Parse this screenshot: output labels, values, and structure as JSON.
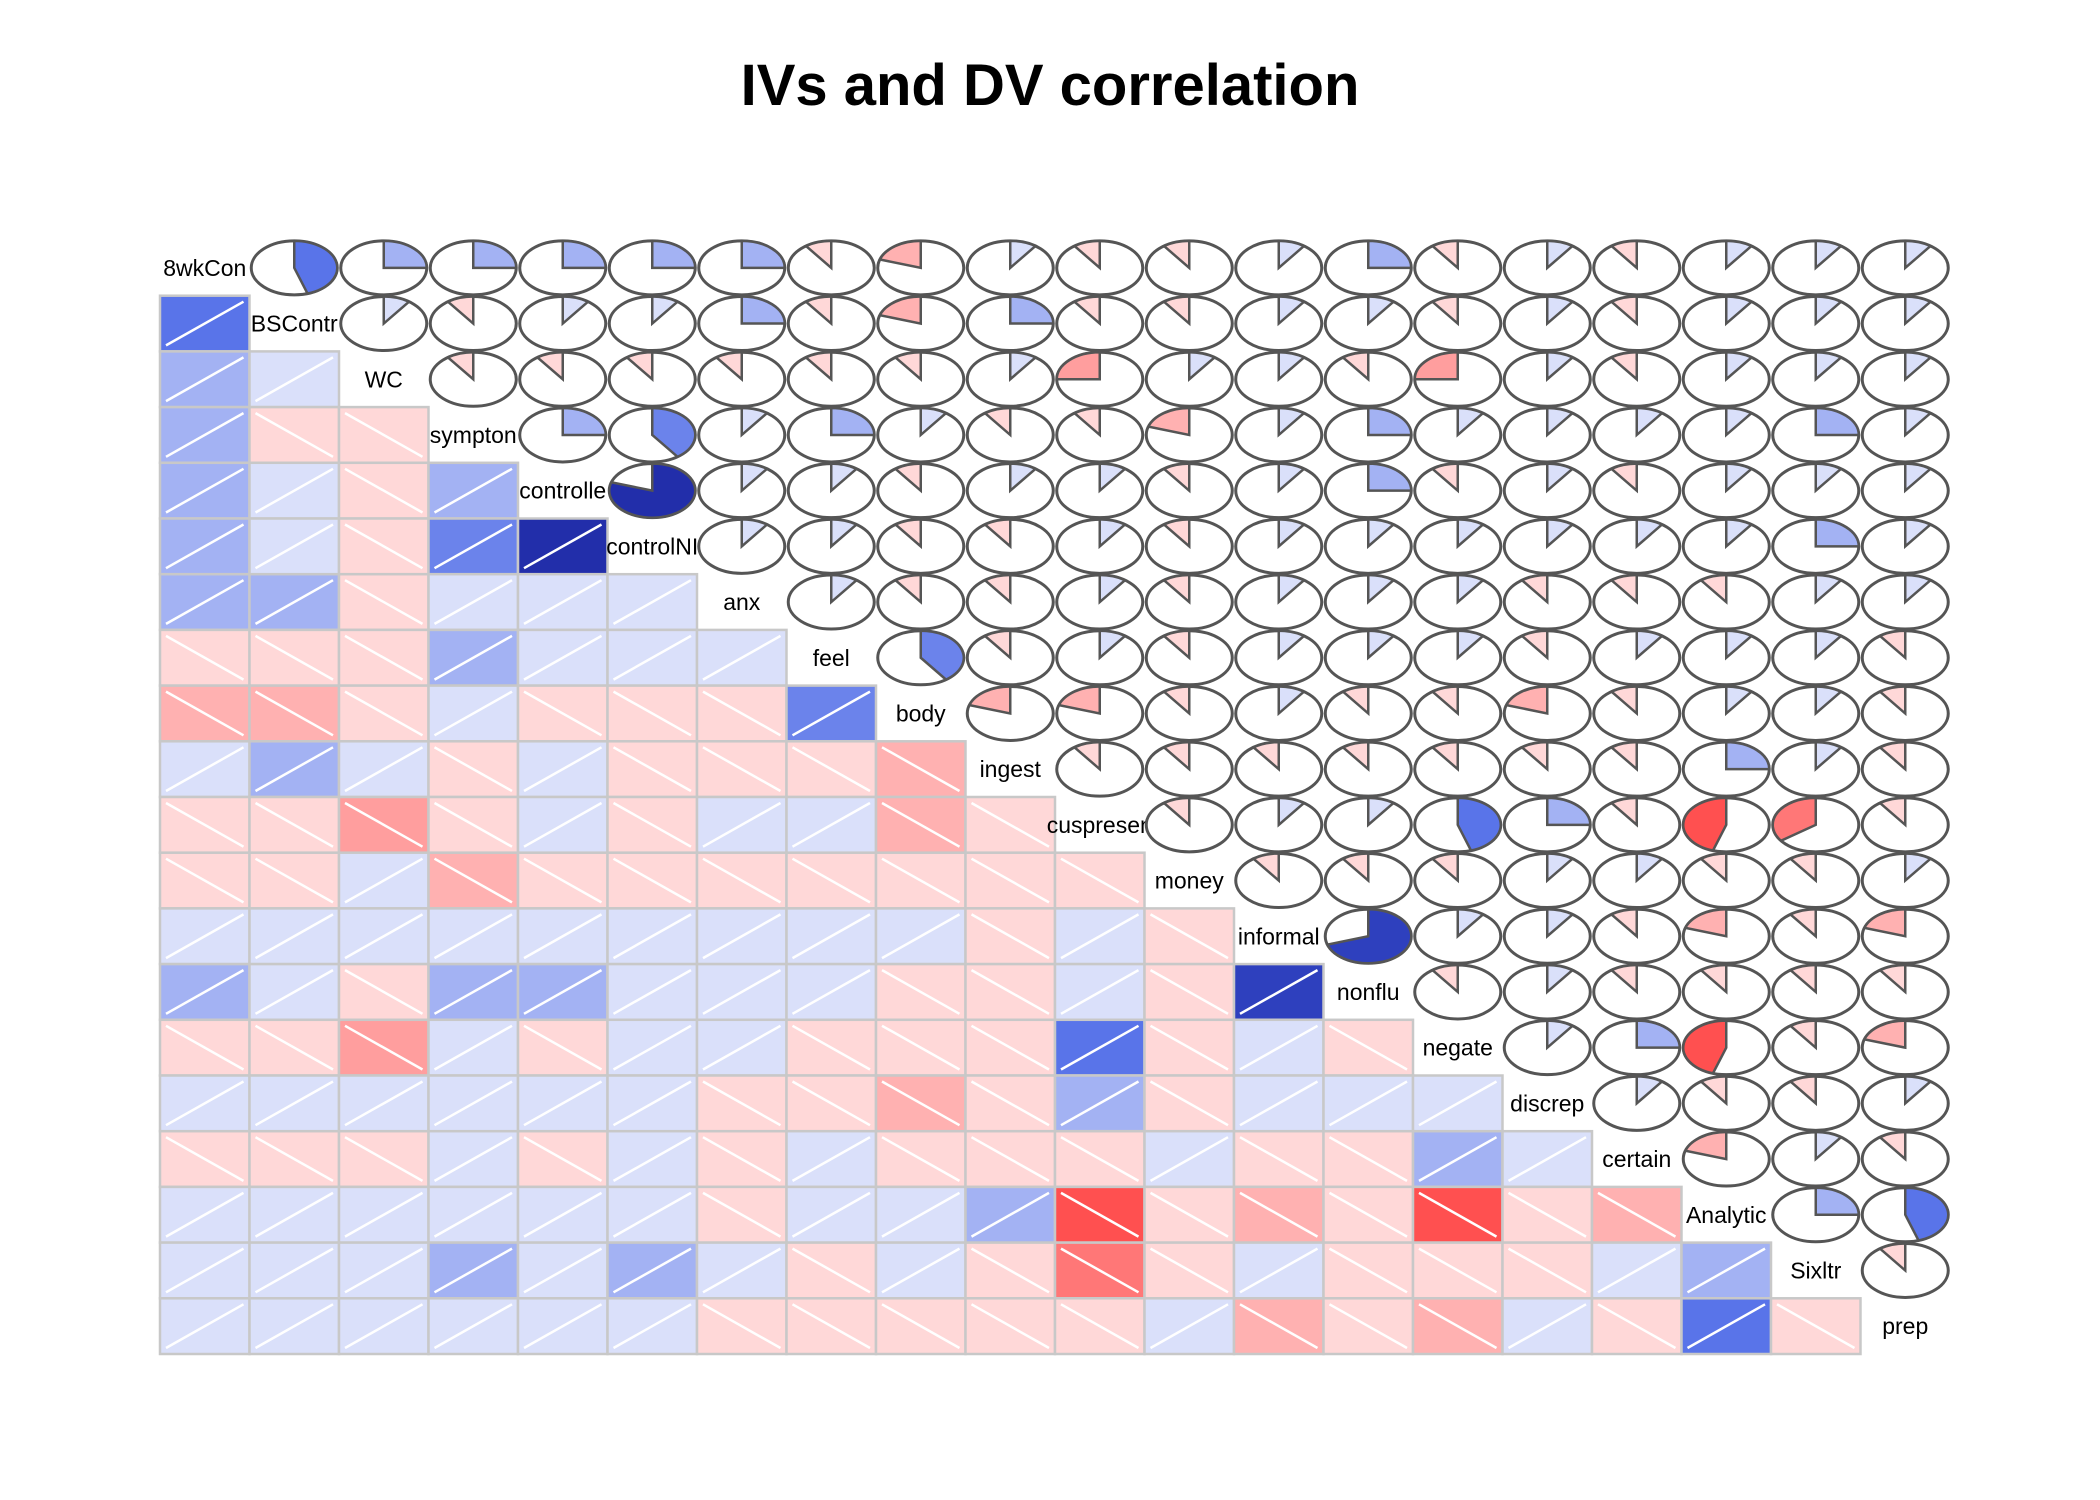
{
  "chart_data": {
    "type": "heatmap",
    "title": "IVs and DV correlation",
    "variables": [
      "8wkCon",
      "BSContr",
      "WC",
      "sympton",
      "controlle",
      "controlNI",
      "anx",
      "feel",
      "body",
      "ingest",
      "cuspresen",
      "money",
      "informal",
      "nonflu",
      "negate",
      "discrep",
      "certain",
      "Analytic",
      "Sixltr",
      "prep"
    ],
    "lower_panel": "shade",
    "upper_panel": "pie",
    "diagonal": "variable names",
    "color_scale": {
      "negative": "#ff0000",
      "zero": "#ffffff",
      "positive": "#00008b"
    },
    "matrix": [
      [
        1,
        0.45,
        0.25,
        0.25,
        0.25,
        0.25,
        0.25,
        -0.1,
        -0.2,
        0.1,
        -0.1,
        -0.1,
        0.1,
        0.25,
        -0.1,
        0.1,
        -0.1,
        0.1,
        0.1,
        0.1
      ],
      [
        0.45,
        1,
        0.1,
        -0.1,
        0.1,
        0.1,
        0.25,
        -0.1,
        -0.2,
        0.25,
        -0.1,
        -0.1,
        0.1,
        0.1,
        -0.1,
        0.1,
        -0.1,
        0.1,
        0.1,
        0.1
      ],
      [
        0.25,
        0.1,
        1,
        -0.1,
        -0.1,
        -0.1,
        -0.1,
        -0.1,
        -0.1,
        0.1,
        -0.25,
        0.1,
        0.1,
        -0.1,
        -0.25,
        0.1,
        -0.1,
        0.1,
        0.1,
        0.1
      ],
      [
        0.25,
        -0.1,
        -0.1,
        1,
        0.25,
        0.4,
        0.1,
        0.25,
        0.1,
        -0.1,
        -0.1,
        -0.2,
        0.1,
        0.25,
        0.1,
        0.1,
        0.1,
        0.1,
        0.25,
        0.1
      ],
      [
        0.25,
        0.1,
        -0.1,
        0.25,
        1,
        0.8,
        0.1,
        0.1,
        -0.1,
        0.1,
        0.1,
        -0.1,
        0.1,
        0.25,
        -0.1,
        0.1,
        -0.1,
        0.1,
        0.1,
        0.1
      ],
      [
        0.25,
        0.1,
        -0.1,
        0.4,
        0.8,
        1,
        0.1,
        0.1,
        -0.1,
        -0.1,
        0.1,
        -0.1,
        0.1,
        0.1,
        0.1,
        0.1,
        0.1,
        0.1,
        0.25,
        0.1
      ],
      [
        0.25,
        0.25,
        -0.1,
        0.1,
        0.1,
        0.1,
        1,
        0.1,
        -0.1,
        -0.1,
        0.1,
        -0.1,
        0.1,
        0.1,
        0.1,
        -0.1,
        -0.1,
        -0.1,
        0.1,
        0.1
      ],
      [
        -0.1,
        -0.1,
        -0.1,
        0.25,
        0.1,
        0.1,
        0.1,
        1,
        0.4,
        -0.1,
        0.1,
        -0.1,
        0.1,
        0.1,
        0.1,
        -0.1,
        0.1,
        0.1,
        0.1,
        -0.1
      ],
      [
        -0.2,
        -0.2,
        -0.1,
        0.1,
        -0.1,
        -0.1,
        -0.1,
        0.4,
        1,
        -0.2,
        -0.2,
        -0.1,
        0.1,
        -0.1,
        -0.1,
        -0.2,
        -0.1,
        0.1,
        0.1,
        -0.1
      ],
      [
        0.1,
        0.25,
        0.1,
        -0.1,
        0.1,
        -0.1,
        -0.1,
        -0.1,
        -0.2,
        1,
        -0.1,
        -0.1,
        -0.1,
        -0.1,
        -0.1,
        -0.1,
        -0.1,
        0.25,
        0.1,
        -0.1
      ],
      [
        -0.1,
        -0.1,
        -0.25,
        -0.1,
        0.1,
        -0.1,
        0.1,
        0.1,
        -0.2,
        -0.1,
        1,
        -0.1,
        0.1,
        0.1,
        0.45,
        0.25,
        -0.1,
        -0.45,
        -0.35,
        -0.1
      ],
      [
        -0.1,
        -0.1,
        0.1,
        -0.2,
        -0.1,
        -0.1,
        -0.1,
        -0.1,
        -0.1,
        -0.1,
        -0.1,
        1,
        -0.1,
        -0.1,
        -0.1,
        0.1,
        0.1,
        -0.1,
        -0.1,
        0.1
      ],
      [
        0.1,
        0.1,
        0.1,
        0.1,
        0.1,
        0.1,
        0.1,
        0.1,
        0.1,
        -0.1,
        0.1,
        -0.1,
        1,
        0.7,
        0.1,
        0.1,
        -0.1,
        -0.2,
        -0.1,
        -0.2
      ],
      [
        0.25,
        0.1,
        -0.1,
        0.25,
        0.25,
        0.1,
        0.1,
        0.1,
        -0.1,
        -0.1,
        0.1,
        -0.1,
        0.7,
        1,
        -0.1,
        0.1,
        -0.1,
        -0.1,
        -0.1,
        -0.1
      ],
      [
        -0.1,
        -0.1,
        -0.25,
        0.1,
        -0.1,
        0.1,
        0.1,
        -0.1,
        -0.1,
        -0.1,
        0.45,
        -0.1,
        0.1,
        -0.1,
        1,
        0.1,
        0.25,
        -0.45,
        -0.1,
        -0.2
      ],
      [
        0.1,
        0.1,
        0.1,
        0.1,
        0.1,
        0.1,
        -0.1,
        -0.1,
        -0.2,
        -0.1,
        0.25,
        -0.1,
        0.1,
        0.1,
        0.1,
        1,
        0.1,
        -0.1,
        -0.1,
        0.1
      ],
      [
        -0.1,
        -0.1,
        -0.1,
        0.1,
        -0.1,
        0.1,
        -0.1,
        0.1,
        -0.1,
        -0.1,
        -0.1,
        0.1,
        -0.1,
        -0.1,
        0.25,
        0.1,
        1,
        -0.2,
        0.1,
        -0.1
      ],
      [
        0.1,
        0.1,
        0.1,
        0.1,
        0.1,
        0.1,
        -0.1,
        0.1,
        0.1,
        0.25,
        -0.45,
        -0.1,
        -0.2,
        -0.1,
        -0.45,
        -0.1,
        -0.2,
        1,
        0.25,
        0.45
      ],
      [
        0.1,
        0.1,
        0.1,
        0.25,
        0.1,
        0.25,
        0.1,
        -0.1,
        0.1,
        -0.1,
        -0.35,
        -0.1,
        0.1,
        -0.1,
        -0.1,
        -0.1,
        0.1,
        0.25,
        1,
        -0.1
      ],
      [
        0.1,
        0.1,
        0.1,
        0.1,
        0.1,
        0.1,
        -0.1,
        -0.1,
        -0.1,
        -0.1,
        -0.1,
        0.1,
        -0.2,
        -0.1,
        -0.2,
        0.1,
        -0.1,
        0.45,
        -0.1,
        1
      ]
    ]
  }
}
